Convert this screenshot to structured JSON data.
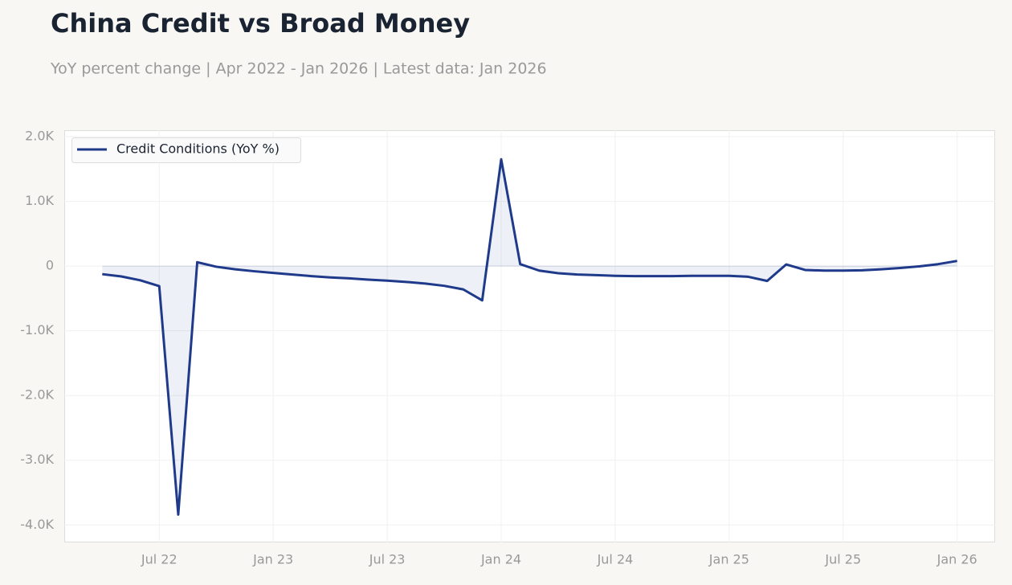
{
  "chart_data": {
    "type": "line",
    "title": "China Credit vs Broad Money",
    "subtitle": "YoY percent change | Apr 2022 - Jan 2026 | Latest data: Jan 2026",
    "x": [
      "2022-04",
      "2022-05",
      "2022-06",
      "2022-07",
      "2022-08",
      "2022-09",
      "2022-10",
      "2022-11",
      "2022-12",
      "2023-01",
      "2023-02",
      "2023-03",
      "2023-04",
      "2023-05",
      "2023-06",
      "2023-07",
      "2023-08",
      "2023-09",
      "2023-10",
      "2023-11",
      "2023-12",
      "2024-01",
      "2024-02",
      "2024-03",
      "2024-04",
      "2024-05",
      "2024-06",
      "2024-07",
      "2024-08",
      "2024-09",
      "2024-10",
      "2024-11",
      "2024-12",
      "2025-01",
      "2025-02",
      "2025-03",
      "2025-04",
      "2025-05",
      "2025-06",
      "2025-07",
      "2025-08",
      "2025-09",
      "2025-10",
      "2025-11",
      "2025-12",
      "2026-01"
    ],
    "series": [
      {
        "name": "Credit Conditions (YoY %)",
        "color": "#1f3a8a",
        "values": [
          -125,
          -160,
          -220,
          -310,
          -3840,
          60,
          -10,
          -50,
          -80,
          -105,
          -130,
          -155,
          -175,
          -190,
          -210,
          -225,
          -245,
          -270,
          -305,
          -360,
          -530,
          1650,
          30,
          -70,
          -110,
          -130,
          -140,
          -150,
          -155,
          -155,
          -155,
          -150,
          -150,
          -150,
          -165,
          -230,
          25,
          -60,
          -70,
          -70,
          -65,
          -50,
          -30,
          -5,
          30,
          80
        ]
      }
    ],
    "xlim": [
      "2022-02",
      "2026-03"
    ],
    "xticks": [
      {
        "value": "2022-07",
        "label": "Jul 22"
      },
      {
        "value": "2023-01",
        "label": "Jan 23"
      },
      {
        "value": "2023-07",
        "label": "Jul 23"
      },
      {
        "value": "2024-01",
        "label": "Jan 24"
      },
      {
        "value": "2024-07",
        "label": "Jul 24"
      },
      {
        "value": "2025-01",
        "label": "Jan 25"
      },
      {
        "value": "2025-07",
        "label": "Jul 25"
      },
      {
        "value": "2026-01",
        "label": "Jan 26"
      }
    ],
    "ylim": [
      -4270,
      2100
    ],
    "yticks": [
      {
        "value": -4000,
        "label": "-4.0K"
      },
      {
        "value": -3000,
        "label": "-3.0K"
      },
      {
        "value": -2000,
        "label": "-2.0K"
      },
      {
        "value": -1000,
        "label": "-1.0K"
      },
      0,
      {
        "value": 1000,
        "label": "1.0K"
      },
      {
        "value": 2000,
        "label": "2.0K"
      }
    ],
    "grid": true,
    "legend": "upper-left"
  }
}
